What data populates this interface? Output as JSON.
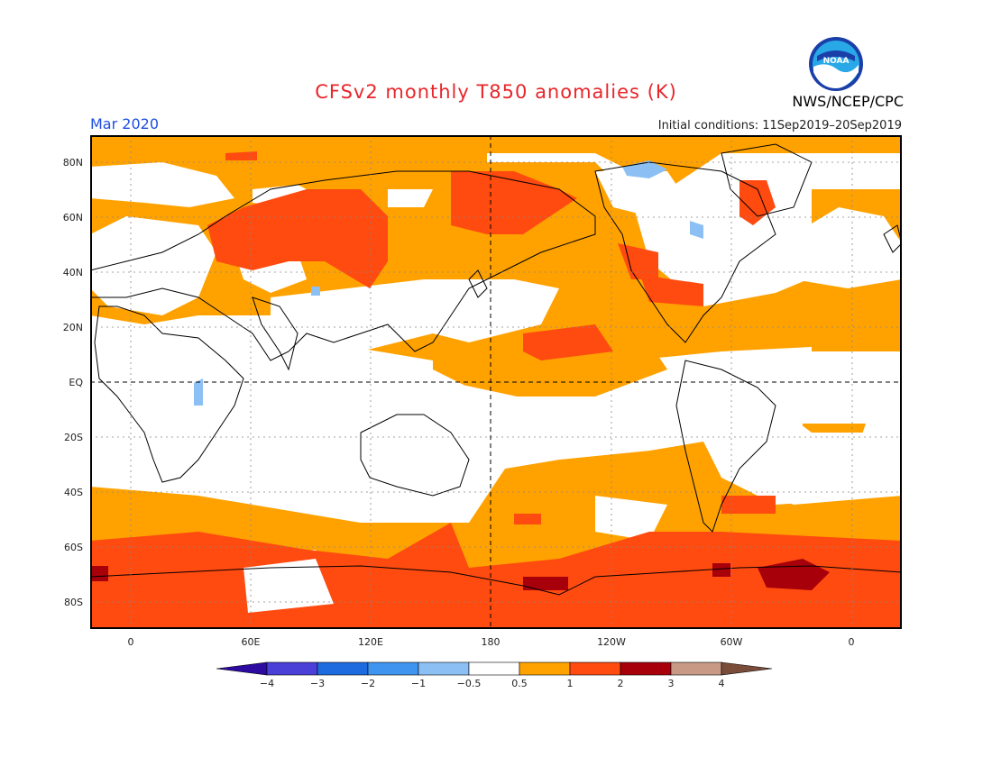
{
  "header": {
    "title": "CFSv2 monthly T850 anomalies (K)",
    "valid_month": "Mar 2020",
    "initial_conditions": "Initial conditions: 11Sep2019–20Sep2019",
    "agency": "NWS/NCEP/CPC",
    "logo_text": "NOAA"
  },
  "map": {
    "lat_labels": [
      "80N",
      "60N",
      "40N",
      "20N",
      "EQ",
      "20S",
      "40S",
      "60S",
      "80S"
    ],
    "lon_labels": [
      "0",
      "60E",
      "120E",
      "180",
      "120W",
      "60W",
      "0"
    ]
  },
  "colorbar": {
    "labels": [
      "-4",
      "-3",
      "-2",
      "-1",
      "-0.5",
      "0.5",
      "1",
      "2",
      "3",
      "4"
    ],
    "colors": [
      "#2d0ba0",
      "#4a3fd6",
      "#1e6be0",
      "#3f94f0",
      "#8cc0f5",
      "#ffffff",
      "#ffa200",
      "#ff4a10",
      "#a8000a",
      "#c89a86",
      "#7a4c3a"
    ]
  },
  "colors": {
    "title": "#e8262a",
    "month": "#1f4fe0",
    "land_outline": "#000000",
    "ocean_warm": "#ffa200",
    "strong_warm": "#ff4a10",
    "very_strong_warm": "#a8000a",
    "cool": "#8cc0f5"
  }
}
